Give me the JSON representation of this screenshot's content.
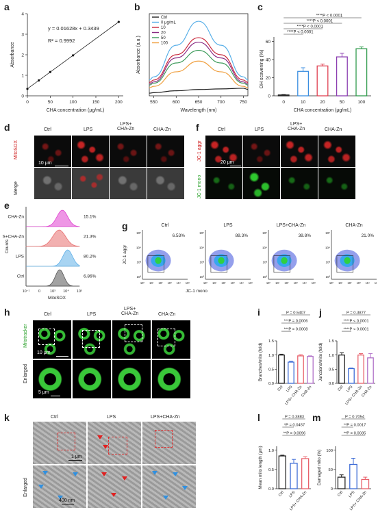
{
  "panels": {
    "a": "a",
    "b": "b",
    "c": "c",
    "d": "d",
    "e": "e",
    "f": "f",
    "g": "g",
    "h": "h",
    "i": "i",
    "j": "j",
    "k": "k",
    "l": "l",
    "m": "m"
  },
  "conditions": {
    "ctrl": "Ctrl",
    "lps": "LPS",
    "lps_cha": "LPS+CHA-Zn",
    "lps_cha_two_line": "LPS+\nCHA-Zn",
    "cha": "CHA-Zn"
  },
  "panel_a": {
    "equation": "y = 0.01628x + 0.3439",
    "r2": "R² = 0.9992",
    "xlabel": "CHA concentration (μg/mL)",
    "ylabel": "Absorbance",
    "xticks": [
      "0",
      "50",
      "100",
      "150",
      "200"
    ],
    "yticks": [
      "0",
      "1",
      "2",
      "3",
      "4"
    ]
  },
  "panel_b": {
    "xlabel": "Wavelength (nm)",
    "ylabel": "Absorbance (a.u.)",
    "xticks": [
      "550",
      "600",
      "650",
      "700",
      "750"
    ],
    "legend": [
      "Ctrl",
      "0 μg/mL",
      "10",
      "20",
      "50",
      "100"
    ]
  },
  "panel_c": {
    "xlabel": "CHA concentration (μg/mL)",
    "ylabel": "OH scavening (%)",
    "xticks": [
      "0",
      "10",
      "20",
      "50",
      "100"
    ],
    "yticks": [
      "0",
      "20",
      "40",
      "60"
    ],
    "sig": [
      "****P < 0.0001",
      "****P < 0.0001",
      "****P < 0.0001",
      "****P < 0.0001"
    ]
  },
  "panel_d": {
    "row1": "MitoSOX",
    "row2": "Merge",
    "scale": "10 μm"
  },
  "panel_e": {
    "rows": [
      {
        "label": "CHA-Zn",
        "pct": "15.1%"
      },
      {
        "label": "LPS+CHA-Zn",
        "pct": "21.3%"
      },
      {
        "label": "LPS",
        "pct": "80.2%"
      },
      {
        "label": "Ctrl",
        "pct": "6.86%"
      }
    ],
    "xlabel": "MitoSOX",
    "ylabel": "Counts",
    "xticks": [
      "10⁻¹",
      "0",
      "10³",
      "10⁴",
      "10⁵"
    ]
  },
  "panel_f": {
    "row1": "JC-1 aggr",
    "row2": "JC-1 mono",
    "scale": "20 μm"
  },
  "panel_g": {
    "pcts": [
      "6.53%",
      "88.3%",
      "38.8%",
      "21.0%"
    ],
    "ylabel": "JC-1 aggr",
    "xlabel": "JC-1 mono",
    "yticks": [
      "10⁵",
      "10⁴",
      "10³",
      "10²"
    ],
    "xticks": [
      "10⁰",
      "10¹",
      "10²",
      "10³",
      "10⁴",
      "10⁵"
    ]
  },
  "panel_h": {
    "row1": "Mitotracker",
    "row2": "Enlarged",
    "scale1": "10 μm",
    "scale2": "5 μm"
  },
  "panel_i": {
    "ylabel": "Branches/mito (fold)",
    "yticks": [
      "0.0",
      "0.5",
      "1.0",
      "1.5"
    ],
    "sig": [
      "P = 0.5407",
      "***P = 0.0006",
      "***P = 0.0008"
    ],
    "xticks": [
      "Ctrl",
      "LPS",
      "LPS+ CHA-Zn",
      "CHA-Zn"
    ]
  },
  "panel_j": {
    "ylabel": "Junctions/mito (fold)",
    "yticks": [
      "0.0",
      "0.5",
      "1.0",
      "1.5"
    ],
    "sig": [
      "P = 0.3877",
      "****P < 0.0001",
      "****P < 0.0001"
    ],
    "xticks": [
      "Ctrl",
      "LPS",
      "LPS+ CHA-Zn",
      "CHA-Zn"
    ]
  },
  "panel_k": {
    "row2": "Enlarged",
    "scale1": "1 μm",
    "scale2": "400 nm"
  },
  "panel_l": {
    "ylabel": "Mean mito length (μm)",
    "yticks": [
      "0.0",
      "0.5",
      "1.0"
    ],
    "sig": [
      "P = 0.3883",
      "*P = 0.0457",
      "**P = 0.0096"
    ],
    "xticks": [
      "Ctrl",
      "LPS",
      "LPS+ CHA-Zn"
    ]
  },
  "panel_m": {
    "ylabel": "Damaged mito (%)",
    "yticks": [
      "0",
      "50",
      "100"
    ],
    "sig": [
      "P = 0.7054",
      "**P = 0.0017",
      "**P = 0.0035"
    ],
    "xticks": [
      "Ctrl",
      "LPS",
      "LPS+ CHA-Zn"
    ]
  },
  "colors": {
    "ctrl": "#222222",
    "zero": "#5ab0e8",
    "c10": "#c8283c",
    "c20": "#8a2c84",
    "c50": "#3c9a5a",
    "c100": "#f0a040",
    "lps": "#3c6bd6",
    "lpscha": "#e8606a",
    "cha": "#b070c8",
    "bar_c": [
      "#222222",
      "#3a8ee0",
      "#e04050",
      "#8a3cb0",
      "#2e9a4a"
    ]
  },
  "chart_data": [
    {
      "type": "scatter",
      "title": "",
      "xlabel": "CHA concentration (μg/mL)",
      "ylabel": "Absorbance",
      "x": [
        0,
        25,
        50,
        100,
        200
      ],
      "y": [
        0.34,
        0.75,
        1.16,
        1.97,
        3.6
      ],
      "xlim": [
        0,
        210
      ],
      "ylim": [
        0,
        4
      ]
    },
    {
      "type": "line",
      "xlabel": "Wavelength (nm)",
      "ylabel": "Absorbance (a.u.)",
      "x": [
        550,
        600,
        650,
        700,
        750
      ],
      "series": [
        {
          "name": "Ctrl",
          "values": [
            0.05,
            0.08,
            0.1,
            0.11,
            0.12
          ]
        },
        {
          "name": "0 μg/mL",
          "values": [
            0.3,
            0.8,
            1.18,
            0.8,
            0.3
          ]
        },
        {
          "name": "10",
          "values": [
            0.25,
            0.65,
            0.92,
            0.65,
            0.25
          ]
        },
        {
          "name": "20",
          "values": [
            0.22,
            0.6,
            0.85,
            0.6,
            0.22
          ]
        },
        {
          "name": "50",
          "values": [
            0.2,
            0.52,
            0.72,
            0.52,
            0.2
          ]
        },
        {
          "name": "100",
          "values": [
            0.15,
            0.38,
            0.55,
            0.38,
            0.15
          ]
        }
      ],
      "xlim": [
        540,
        760
      ]
    },
    {
      "type": "bar",
      "xlabel": "CHA concentration (μg/mL)",
      "ylabel": "OH scavening (%)",
      "categories": [
        "0",
        "10",
        "20",
        "50",
        "100"
      ],
      "values": [
        1,
        27,
        33,
        43,
        52
      ],
      "errors": [
        0.5,
        4,
        2,
        4,
        2
      ],
      "ylim": [
        0,
        65
      ]
    },
    {
      "type": "bar",
      "ylabel": "Branches/mito (fold)",
      "categories": [
        "Ctrl",
        "LPS",
        "LPS+ CHA-Zn",
        "CHA-Zn"
      ],
      "values": [
        1.0,
        0.75,
        0.97,
        0.95
      ],
      "errors": [
        0.03,
        0.03,
        0.04,
        0.02
      ],
      "ylim": [
        0,
        1.5
      ]
    },
    {
      "type": "bar",
      "ylabel": "Junctions/mito (fold)",
      "categories": [
        "Ctrl",
        "LPS",
        "LPS+ CHA-Zn",
        "CHA-Zn"
      ],
      "values": [
        1.0,
        0.52,
        1.0,
        0.9
      ],
      "errors": [
        0.08,
        0.02,
        0.05,
        0.15
      ],
      "ylim": [
        0,
        1.5
      ]
    },
    {
      "type": "bar",
      "ylabel": "Mean mito length (μm)",
      "categories": [
        "Ctrl",
        "LPS",
        "LPS+ CHA-Zn"
      ],
      "values": [
        0.85,
        0.66,
        0.78
      ],
      "errors": [
        0.02,
        0.1,
        0.05
      ],
      "ylim": [
        0,
        1.1
      ]
    },
    {
      "type": "bar",
      "ylabel": "Damaged mito (%)",
      "categories": [
        "Ctrl",
        "LPS",
        "LPS+ CHA-Zn"
      ],
      "values": [
        30,
        63,
        24
      ],
      "errors": [
        6,
        16,
        6
      ],
      "ylim": [
        0,
        110
      ]
    }
  ]
}
